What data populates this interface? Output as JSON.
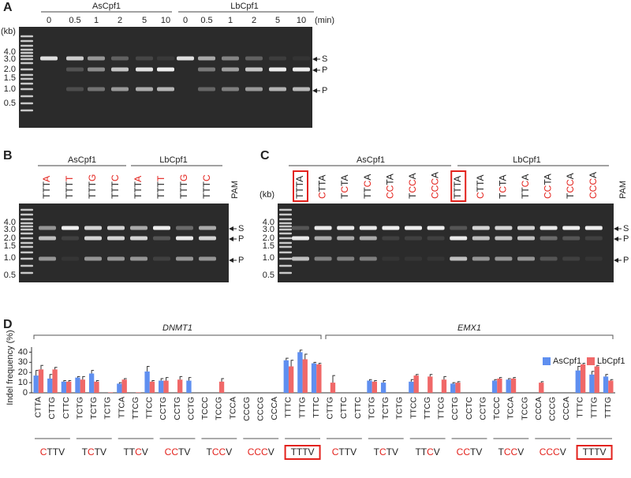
{
  "highlight_color": "#e3221c",
  "gel_a": {
    "letter": "A",
    "groups": [
      "AsCpf1",
      "LbCpf1"
    ],
    "times": [
      0,
      0.5,
      1,
      2,
      5,
      10,
      0,
      0.5,
      1,
      2,
      5,
      10
    ],
    "time_unit": "(min)",
    "kb_unit": "(kb)",
    "kb": [
      "4.0",
      "3.0",
      "2.0",
      "1.5",
      "1.0",
      "0.5"
    ],
    "arrows": [
      "S",
      "P",
      "P"
    ]
  },
  "gel_b": {
    "letter": "B",
    "groups": [
      "AsCpf1",
      "LbCpf1"
    ],
    "pam_title": "PAM",
    "kb": [
      "4.0",
      "3.0",
      "2.0",
      "1.5",
      "1.0",
      "0.5"
    ],
    "arrows": [
      "S",
      "P",
      "P"
    ],
    "lanes": [
      {
        "parts": [
          {
            "t": "TTT"
          },
          {
            "t": "A",
            "red": true
          }
        ]
      },
      {
        "parts": [
          {
            "t": "TTT"
          },
          {
            "t": "T",
            "red": true
          }
        ]
      },
      {
        "parts": [
          {
            "t": "TTT"
          },
          {
            "t": "G",
            "red": true
          }
        ]
      },
      {
        "parts": [
          {
            "t": "TTT"
          },
          {
            "t": "C",
            "red": true
          }
        ]
      },
      {
        "parts": [
          {
            "t": "TTT"
          },
          {
            "t": "A",
            "red": true
          }
        ]
      },
      {
        "parts": [
          {
            "t": "TTT"
          },
          {
            "t": "T",
            "red": true
          }
        ]
      },
      {
        "parts": [
          {
            "t": "TTT"
          },
          {
            "t": "G",
            "red": true
          }
        ]
      },
      {
        "parts": [
          {
            "t": "TTT"
          },
          {
            "t": "C",
            "red": true
          }
        ]
      }
    ]
  },
  "gel_c": {
    "letter": "C",
    "groups": [
      "AsCpf1",
      "LbCpf1"
    ],
    "pam_title": "PAM",
    "kb_unit": "(kb)",
    "kb": [
      "4.0",
      "3.0",
      "2.0",
      "1.5",
      "1.0",
      "0.5"
    ],
    "arrows": [
      "S",
      "P",
      "P"
    ],
    "lanes": [
      {
        "parts": [
          {
            "t": "TTTA"
          }
        ],
        "boxed": true
      },
      {
        "parts": [
          {
            "t": "C",
            "red": true
          },
          {
            "t": "TTA"
          }
        ]
      },
      {
        "parts": [
          {
            "t": "T"
          },
          {
            "t": "C",
            "red": true
          },
          {
            "t": "TA"
          }
        ]
      },
      {
        "parts": [
          {
            "t": "TT"
          },
          {
            "t": "C",
            "red": true
          },
          {
            "t": "A"
          }
        ]
      },
      {
        "parts": [
          {
            "t": "CC",
            "red": true
          },
          {
            "t": "TA"
          }
        ]
      },
      {
        "parts": [
          {
            "t": "T"
          },
          {
            "t": "CC",
            "red": true
          },
          {
            "t": "A"
          }
        ]
      },
      {
        "parts": [
          {
            "t": "CCC",
            "red": true
          },
          {
            "t": "A"
          }
        ]
      },
      {
        "parts": [
          {
            "t": "TTTA"
          }
        ],
        "boxed": true
      },
      {
        "parts": [
          {
            "t": "C",
            "red": true
          },
          {
            "t": "TTA"
          }
        ]
      },
      {
        "parts": [
          {
            "t": "T"
          },
          {
            "t": "C",
            "red": true
          },
          {
            "t": "TA"
          }
        ]
      },
      {
        "parts": [
          {
            "t": "TT"
          },
          {
            "t": "C",
            "red": true
          },
          {
            "t": "A"
          }
        ]
      },
      {
        "parts": [
          {
            "t": "CC",
            "red": true
          },
          {
            "t": "TA"
          }
        ]
      },
      {
        "parts": [
          {
            "t": "T"
          },
          {
            "t": "CC",
            "red": true
          },
          {
            "t": "A"
          }
        ]
      },
      {
        "parts": [
          {
            "t": "CCC",
            "red": true
          },
          {
            "t": "A"
          }
        ]
      }
    ]
  },
  "chart_data": {
    "type": "bar",
    "letter": "D",
    "y_label": "Indel frequency (%)",
    "ylim": [
      0,
      45
    ],
    "yticks": [
      0,
      10,
      20,
      30,
      40
    ],
    "legend": "top-right",
    "loci": [
      "DNMT1",
      "EMX1"
    ],
    "categories": [
      "CTTA",
      "CTTG",
      "CTTC",
      "TCTG",
      "TCTG",
      "TCTG",
      "TTCA",
      "TTCG",
      "TTCC",
      "CCTG",
      "CCTG",
      "CCTG",
      "TCCC",
      "TCCG",
      "TCCA",
      "CCCG",
      "CCCG",
      "CCCA",
      "TTTC",
      "TTTG",
      "TTTC",
      "CTTG",
      "CTTC",
      "CTTC",
      "TCTG",
      "TCTG",
      "TCTG",
      "TTCC",
      "TTCG",
      "TTCG",
      "CCTG",
      "CCTC",
      "CCTG",
      "TCCC",
      "TCCA",
      "TCCG",
      "CCCA",
      "CCCG",
      "CCCA",
      "TTTC",
      "TTTG",
      "TTTG"
    ],
    "groups": [
      {
        "parts": [
          {
            "t": "C",
            "red": true
          },
          {
            "t": "TTV"
          }
        ]
      },
      {
        "parts": [
          {
            "t": "T"
          },
          {
            "t": "C",
            "red": true
          },
          {
            "t": "TV"
          }
        ]
      },
      {
        "parts": [
          {
            "t": "TT"
          },
          {
            "t": "C",
            "red": true
          },
          {
            "t": "V"
          }
        ]
      },
      {
        "parts": [
          {
            "t": "CC",
            "red": true
          },
          {
            "t": "TV"
          }
        ]
      },
      {
        "parts": [
          {
            "t": "T"
          },
          {
            "t": "CC",
            "red": true
          },
          {
            "t": "V"
          }
        ]
      },
      {
        "parts": [
          {
            "t": "CCC",
            "red": true
          },
          {
            "t": "V"
          }
        ]
      },
      {
        "parts": [
          {
            "t": "TTTV"
          }
        ],
        "boxed": true
      },
      {
        "parts": [
          {
            "t": "C",
            "red": true
          },
          {
            "t": "TTV"
          }
        ]
      },
      {
        "parts": [
          {
            "t": "T"
          },
          {
            "t": "C",
            "red": true
          },
          {
            "t": "TV"
          }
        ]
      },
      {
        "parts": [
          {
            "t": "TT"
          },
          {
            "t": "C",
            "red": true
          },
          {
            "t": "V"
          }
        ]
      },
      {
        "parts": [
          {
            "t": "CC",
            "red": true
          },
          {
            "t": "TV"
          }
        ]
      },
      {
        "parts": [
          {
            "t": "T"
          },
          {
            "t": "CC",
            "red": true
          },
          {
            "t": "V"
          }
        ]
      },
      {
        "parts": [
          {
            "t": "CCC",
            "red": true
          },
          {
            "t": "V"
          }
        ]
      },
      {
        "parts": [
          {
            "t": "TTTV"
          }
        ],
        "boxed": true
      }
    ],
    "series": [
      {
        "name": "AsCpf1",
        "color": "#5f8ff0",
        "values": [
          17,
          14,
          11,
          15,
          19,
          0,
          9,
          0,
          21,
          12,
          0,
          12,
          0,
          0,
          0,
          0,
          0,
          0,
          32,
          40,
          29,
          0,
          0,
          0,
          12,
          10,
          0,
          11,
          0,
          0,
          9,
          0,
          0,
          12,
          13,
          0,
          0,
          0,
          0,
          22,
          18,
          16
        ],
        "errors": [
          5,
          4,
          1,
          1,
          3,
          null,
          1,
          null,
          5,
          2,
          null,
          3,
          null,
          null,
          null,
          null,
          null,
          null,
          2,
          2,
          1,
          null,
          null,
          null,
          1,
          2,
          null,
          2,
          null,
          null,
          1,
          null,
          null,
          1,
          1,
          null,
          null,
          null,
          null,
          4,
          3,
          2
        ]
      },
      {
        "name": "LbCpf1",
        "color": "#f06868",
        "values": [
          23,
          23,
          11,
          13,
          11,
          0.5,
          13,
          0.5,
          11,
          12,
          13,
          0,
          0,
          11,
          0,
          0,
          0,
          0,
          26,
          33,
          28,
          10,
          0,
          0,
          11,
          0,
          0,
          17,
          16,
          13,
          10,
          0,
          0,
          14,
          14,
          0,
          10,
          0,
          0,
          28,
          26,
          12
        ],
        "errors": [
          4,
          2,
          1,
          3,
          1,
          null,
          1,
          null,
          1,
          3,
          3,
          null,
          null,
          3,
          null,
          null,
          null,
          null,
          6,
          5,
          1,
          7,
          null,
          null,
          1,
          null,
          null,
          1,
          2,
          3,
          1,
          null,
          null,
          1,
          1,
          null,
          1,
          null,
          null,
          1,
          1,
          1
        ]
      }
    ]
  }
}
